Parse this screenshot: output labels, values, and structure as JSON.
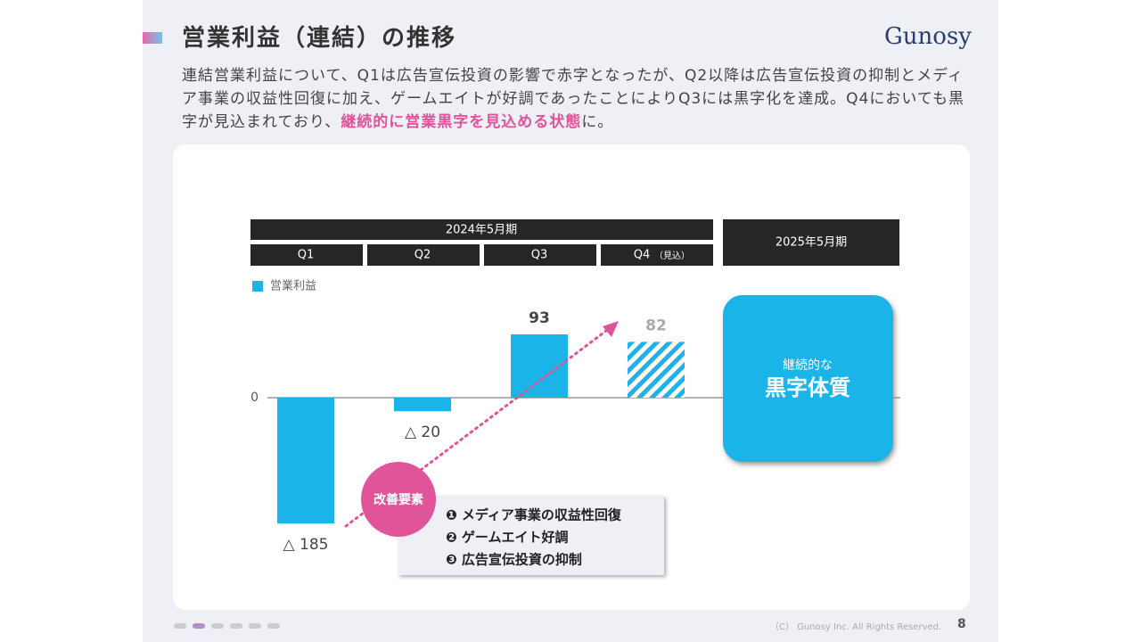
{
  "header": {
    "title": "営業利益（連結）の推移",
    "logo": "Gunosy"
  },
  "description": {
    "text": "連結営業利益について、Q1は広告宣伝投資の影響で赤字となったが、Q2以降は広告宣伝投資の抑制とメディア事業の収益性回復に加え、ゲームエイトが好調であったことによりQ3には黒字化を達成。Q4においても黒字が見込まれており、",
    "highlight": "継続的に営業黒字を見込める状態",
    "end": "に。"
  },
  "chart_data": {
    "type": "bar",
    "periods": [
      "2024年5月期",
      "2025年5月期"
    ],
    "categories": [
      "Q1",
      "Q2",
      "Q3",
      "Q4"
    ],
    "category_note": "（見込）",
    "series": [
      {
        "name": "営業利益",
        "color": "#1ab4e8",
        "values": [
          -185,
          -20,
          93,
          82
        ],
        "value_labels": [
          "△ 185",
          "△ 20",
          "93",
          "82"
        ],
        "hatched": [
          false,
          false,
          false,
          true
        ]
      }
    ],
    "ylim": [
      -200,
      150
    ],
    "yticks": [
      0
    ],
    "improvement_title": "改善要素",
    "improvements": [
      "❶ メディア事業の収益性回復",
      "❷ ゲームエイト好調",
      "❸ 広告宣伝投資の抑制"
    ],
    "callout": {
      "small": "継続的な",
      "large": "黒字体質"
    }
  },
  "footer": {
    "copyright": "（C） Gunosy Inc. All Rights Reserved.",
    "page": "8"
  }
}
